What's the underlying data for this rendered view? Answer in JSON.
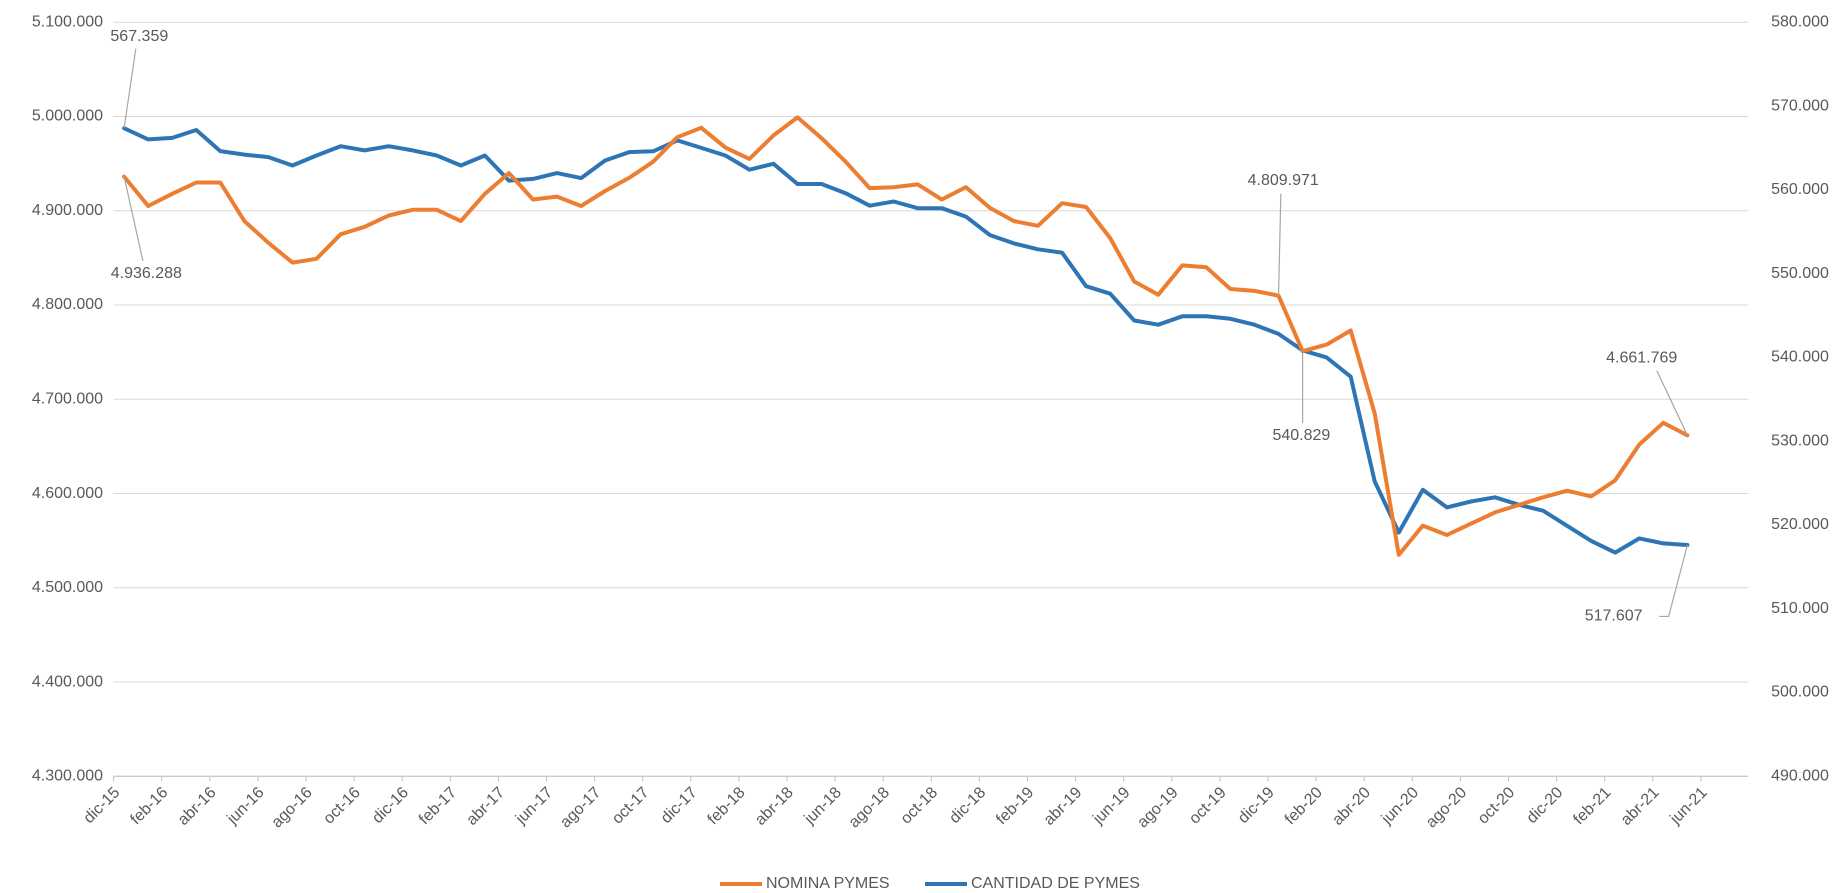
{
  "chart_data": {
    "type": "line",
    "categories": [
      "dic-15",
      null,
      "feb-16",
      null,
      "abr-16",
      null,
      "jun-16",
      null,
      "ago-16",
      null,
      "oct-16",
      null,
      "dic-16",
      null,
      "feb-17",
      null,
      "abr-17",
      null,
      "jun-17",
      null,
      "ago-17",
      null,
      "oct-17",
      null,
      "dic-17",
      null,
      "feb-18",
      null,
      "abr-18",
      null,
      "jun-18",
      null,
      "ago-18",
      null,
      "oct-18",
      null,
      "dic-18",
      null,
      "feb-19",
      null,
      "abr-19",
      null,
      "jun-19",
      null,
      "ago-19",
      null,
      "oct-19",
      null,
      "dic-19",
      null,
      "feb-20",
      null,
      "abr-20",
      null,
      "jun-20",
      null,
      "ago-20",
      null,
      "oct-20",
      null,
      "dic-20",
      null,
      "feb-21",
      null,
      "abr-21",
      null,
      "jun-21"
    ],
    "series": [
      {
        "name": "NOMINA PYMES",
        "color": "#ED7D31",
        "values": [
          4936288,
          4905000,
          4918000,
          4930000,
          4930000,
          4889000,
          4866000,
          4845000,
          4849000,
          4875000,
          4883000,
          4895000,
          4901000,
          4901000,
          4889000,
          4918000,
          4940000,
          4912000,
          4915000,
          4905000,
          4921000,
          4935000,
          4952000,
          4978000,
          4988000,
          4967000,
          4955000,
          4980000,
          4999000,
          4977000,
          4952000,
          4924000,
          4925000,
          4928000,
          4912000,
          4925000,
          4903000,
          4889000,
          4884000,
          4908000,
          4904000,
          4871000,
          4825000,
          4811000,
          4842000,
          4840000,
          4817000,
          4815000,
          4809971,
          4751000,
          4758000,
          4773000,
          4685000,
          4535000,
          4566000,
          4556000,
          4568000,
          4580000,
          4588000,
          4596000,
          4603000,
          4597000,
          4614000,
          4652000,
          4675000,
          4661769,
          null
        ],
        "value_labels": [
          "4.936.288",
          null,
          null,
          null,
          null,
          null,
          null,
          null,
          null,
          null,
          null,
          null,
          null,
          null,
          null,
          null,
          null,
          null,
          null,
          null,
          null,
          null,
          null,
          null,
          null,
          null,
          null,
          null,
          null,
          null,
          null,
          null,
          null,
          null,
          null,
          null,
          null,
          null,
          null,
          null,
          null,
          null,
          null,
          null,
          null,
          null,
          null,
          null,
          "4.809.971",
          null,
          null,
          null,
          null,
          null,
          null,
          null,
          null,
          null,
          null,
          null,
          null,
          null,
          null,
          null,
          null,
          "4.661.769",
          null
        ]
      },
      {
        "name": "CANTIDAD DE PYMES",
        "color": "#2E75B6",
        "axis": "y2",
        "values": [
          567359,
          566020,
          566200,
          567140,
          564620,
          564200,
          563900,
          562900,
          564100,
          565200,
          564700,
          565200,
          564700,
          564100,
          562900,
          564100,
          561100,
          561300,
          562000,
          561400,
          563500,
          564500,
          564600,
          565900,
          565000,
          564100,
          562400,
          563100,
          560700,
          560700,
          559600,
          558100,
          558600,
          557800,
          557800,
          556800,
          554600,
          553600,
          552900,
          552500,
          548500,
          547600,
          544400,
          543900,
          544900,
          544900,
          544600,
          543900,
          542800,
          540829,
          540000,
          537700,
          525200,
          519100,
          524200,
          522100,
          522800,
          523300,
          522400,
          521700,
          519900,
          518100,
          516700,
          518400,
          517800,
          517607,
          null
        ],
        "value_labels": [
          "567.359",
          null,
          null,
          null,
          null,
          null,
          null,
          null,
          null,
          null,
          null,
          null,
          null,
          null,
          null,
          null,
          null,
          null,
          null,
          null,
          null,
          null,
          null,
          null,
          null,
          null,
          null,
          null,
          null,
          null,
          null,
          null,
          null,
          null,
          null,
          null,
          null,
          null,
          null,
          null,
          null,
          null,
          null,
          null,
          null,
          null,
          null,
          null,
          null,
          "540.829",
          null,
          null,
          null,
          null,
          null,
          null,
          null,
          null,
          null,
          null,
          null,
          null,
          null,
          null,
          null,
          "517.607",
          null
        ]
      }
    ],
    "ylim": [
      4300000,
      5100000
    ],
    "yticks": [
      {
        "value": 4300000,
        "label": "4.300.000"
      },
      {
        "value": 4400000,
        "label": "4.400.000"
      },
      {
        "value": 4500000,
        "label": "4.500.000"
      },
      {
        "value": 4600000,
        "label": "4.600.000"
      },
      {
        "value": 4700000,
        "label": "4.700.000"
      },
      {
        "value": 4800000,
        "label": "4.800.000"
      },
      {
        "value": 4900000,
        "label": "4.900.000"
      },
      {
        "value": 5000000,
        "label": "5.000.000"
      },
      {
        "value": 5100000,
        "label": "5.100.000"
      }
    ],
    "y2lim": [
      490000,
      580000
    ],
    "y2ticks": [
      {
        "value": 490000,
        "label": "490.000"
      },
      {
        "value": 500000,
        "label": "500.000"
      },
      {
        "value": 510000,
        "label": "510.000"
      },
      {
        "value": 520000,
        "label": "520.000"
      },
      {
        "value": 530000,
        "label": "530.000"
      },
      {
        "value": 540000,
        "label": "540.000"
      },
      {
        "value": 550000,
        "label": "550.000"
      },
      {
        "value": 560000,
        "label": "560.000"
      },
      {
        "value": 570000,
        "label": "570.000"
      },
      {
        "value": 580000,
        "label": "580.000"
      }
    ],
    "grid": true,
    "legend": "bottom"
  }
}
